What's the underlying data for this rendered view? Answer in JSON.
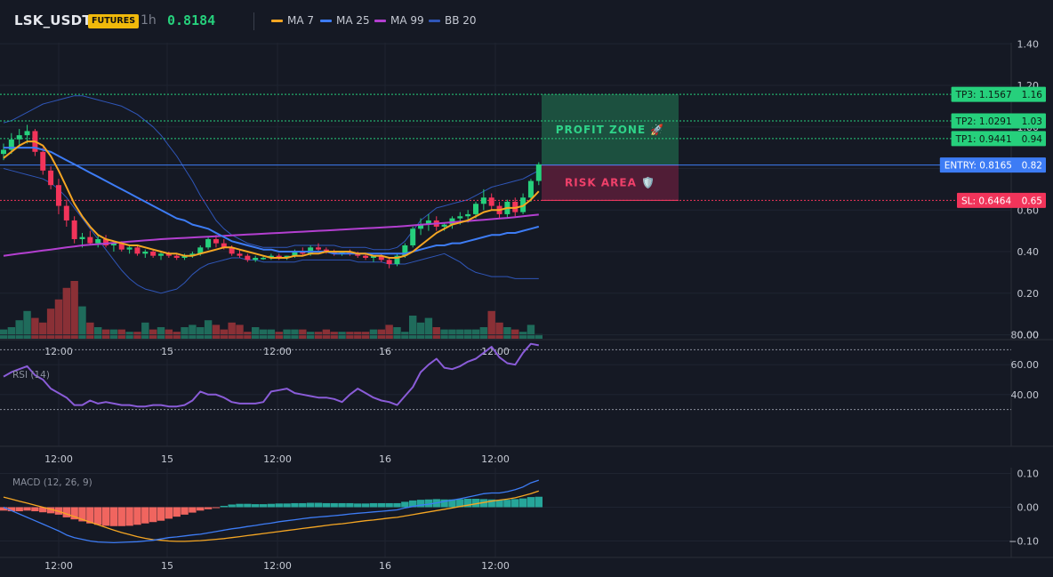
{
  "header": {
    "symbol": "LSK_USDT",
    "badge": "FUTURES",
    "timeframe": "1h",
    "price": "0.8184",
    "indicators": [
      {
        "label": "MA 7",
        "color": "#f5a623"
      },
      {
        "label": "MA 25",
        "color": "#3d7cf5"
      },
      {
        "label": "MA 99",
        "color": "#b33fd0"
      },
      {
        "label": "BB 20",
        "color": "#2f56b8"
      }
    ]
  },
  "colors": {
    "background": "#151924",
    "up": "#26d07c",
    "down": "#f2345a",
    "vol_up": "#1f6b5b",
    "vol_down": "#8a3036",
    "grid": "#1f2431",
    "axis_text": "#c5c9d3",
    "profit_zone": "#1d5a44",
    "risk_zone": "#5a1f3a"
  },
  "chart_data": [
    {
      "type": "candlestick",
      "panel": "price",
      "x_tick_labels": [
        "12:00",
        "15",
        "12:00",
        "16",
        "12:00"
      ],
      "y_ticks": [
        0.0,
        0.2,
        0.4,
        0.6,
        0.8,
        1.0,
        1.2,
        1.4
      ],
      "y_tick_labels": [
        "0.00",
        "0.20",
        "0.40",
        "0.60",
        "0.80",
        "1.00",
        "1.20",
        "1.40"
      ],
      "ylim": [
        0.0,
        1.4
      ],
      "candles": [
        [
          0.87,
          0.92,
          0.84,
          0.89
        ],
        [
          0.89,
          0.97,
          0.87,
          0.94
        ],
        [
          0.94,
          0.99,
          0.9,
          0.96
        ],
        [
          0.96,
          1.01,
          0.92,
          0.98
        ],
        [
          0.98,
          0.99,
          0.86,
          0.88
        ],
        [
          0.88,
          0.9,
          0.77,
          0.79
        ],
        [
          0.79,
          0.81,
          0.7,
          0.72
        ],
        [
          0.72,
          0.75,
          0.58,
          0.62
        ],
        [
          0.62,
          0.65,
          0.52,
          0.55
        ],
        [
          0.55,
          0.57,
          0.44,
          0.46
        ],
        [
          0.46,
          0.49,
          0.42,
          0.47
        ],
        [
          0.47,
          0.5,
          0.43,
          0.44
        ],
        [
          0.44,
          0.48,
          0.42,
          0.46
        ],
        [
          0.46,
          0.48,
          0.42,
          0.43
        ],
        [
          0.43,
          0.45,
          0.4,
          0.44
        ],
        [
          0.44,
          0.45,
          0.4,
          0.41
        ],
        [
          0.41,
          0.43,
          0.39,
          0.42
        ],
        [
          0.42,
          0.43,
          0.38,
          0.39
        ],
        [
          0.39,
          0.41,
          0.37,
          0.4
        ],
        [
          0.4,
          0.41,
          0.37,
          0.38
        ],
        [
          0.38,
          0.4,
          0.36,
          0.39
        ],
        [
          0.39,
          0.4,
          0.37,
          0.38
        ],
        [
          0.38,
          0.39,
          0.36,
          0.37
        ],
        [
          0.37,
          0.39,
          0.36,
          0.38
        ],
        [
          0.38,
          0.4,
          0.37,
          0.39
        ],
        [
          0.39,
          0.43,
          0.38,
          0.42
        ],
        [
          0.42,
          0.47,
          0.41,
          0.46
        ],
        [
          0.46,
          0.48,
          0.42,
          0.44
        ],
        [
          0.44,
          0.46,
          0.41,
          0.42
        ],
        [
          0.42,
          0.43,
          0.38,
          0.39
        ],
        [
          0.39,
          0.41,
          0.37,
          0.38
        ],
        [
          0.38,
          0.39,
          0.35,
          0.36
        ],
        [
          0.36,
          0.38,
          0.35,
          0.37
        ],
        [
          0.37,
          0.38,
          0.36,
          0.37
        ],
        [
          0.37,
          0.39,
          0.36,
          0.38
        ],
        [
          0.38,
          0.39,
          0.36,
          0.37
        ],
        [
          0.37,
          0.38,
          0.36,
          0.38
        ],
        [
          0.38,
          0.41,
          0.37,
          0.4
        ],
        [
          0.4,
          0.42,
          0.38,
          0.39
        ],
        [
          0.39,
          0.43,
          0.38,
          0.42
        ],
        [
          0.42,
          0.44,
          0.4,
          0.41
        ],
        [
          0.41,
          0.42,
          0.39,
          0.4
        ],
        [
          0.4,
          0.41,
          0.38,
          0.39
        ],
        [
          0.39,
          0.4,
          0.38,
          0.4
        ],
        [
          0.4,
          0.41,
          0.38,
          0.39
        ],
        [
          0.39,
          0.4,
          0.37,
          0.38
        ],
        [
          0.38,
          0.39,
          0.36,
          0.37
        ],
        [
          0.37,
          0.38,
          0.35,
          0.38
        ],
        [
          0.38,
          0.39,
          0.35,
          0.36
        ],
        [
          0.36,
          0.37,
          0.32,
          0.34
        ],
        [
          0.34,
          0.39,
          0.33,
          0.38
        ],
        [
          0.38,
          0.44,
          0.37,
          0.43
        ],
        [
          0.43,
          0.52,
          0.42,
          0.51
        ],
        [
          0.51,
          0.56,
          0.48,
          0.53
        ],
        [
          0.53,
          0.58,
          0.5,
          0.55
        ],
        [
          0.55,
          0.57,
          0.5,
          0.52
        ],
        [
          0.52,
          0.54,
          0.5,
          0.53
        ],
        [
          0.53,
          0.57,
          0.51,
          0.56
        ],
        [
          0.56,
          0.59,
          0.53,
          0.57
        ],
        [
          0.57,
          0.6,
          0.54,
          0.58
        ],
        [
          0.58,
          0.64,
          0.56,
          0.63
        ],
        [
          0.63,
          0.7,
          0.6,
          0.66
        ],
        [
          0.66,
          0.68,
          0.6,
          0.62
        ],
        [
          0.62,
          0.64,
          0.56,
          0.58
        ],
        [
          0.58,
          0.65,
          0.56,
          0.64
        ],
        [
          0.64,
          0.66,
          0.57,
          0.59
        ],
        [
          0.59,
          0.68,
          0.58,
          0.66
        ],
        [
          0.66,
          0.75,
          0.64,
          0.74
        ],
        [
          0.74,
          0.83,
          0.72,
          0.82
        ]
      ],
      "ma7": [
        0.85,
        0.88,
        0.91,
        0.93,
        0.93,
        0.91,
        0.86,
        0.79,
        0.71,
        0.63,
        0.57,
        0.52,
        0.48,
        0.46,
        0.45,
        0.44,
        0.43,
        0.43,
        0.42,
        0.41,
        0.4,
        0.39,
        0.39,
        0.38,
        0.38,
        0.39,
        0.4,
        0.41,
        0.42,
        0.42,
        0.41,
        0.4,
        0.39,
        0.38,
        0.37,
        0.37,
        0.37,
        0.38,
        0.38,
        0.39,
        0.39,
        0.4,
        0.4,
        0.4,
        0.4,
        0.39,
        0.39,
        0.38,
        0.38,
        0.37,
        0.37,
        0.38,
        0.4,
        0.43,
        0.46,
        0.49,
        0.51,
        0.53,
        0.54,
        0.55,
        0.57,
        0.59,
        0.6,
        0.6,
        0.61,
        0.61,
        0.62,
        0.65,
        0.69
      ],
      "ma25": [
        0.9,
        0.9,
        0.9,
        0.9,
        0.9,
        0.89,
        0.88,
        0.86,
        0.84,
        0.82,
        0.8,
        0.78,
        0.76,
        0.74,
        0.72,
        0.7,
        0.68,
        0.66,
        0.64,
        0.62,
        0.6,
        0.58,
        0.56,
        0.55,
        0.53,
        0.52,
        0.51,
        0.49,
        0.47,
        0.45,
        0.44,
        0.43,
        0.42,
        0.41,
        0.41,
        0.4,
        0.4,
        0.4,
        0.4,
        0.4,
        0.4,
        0.4,
        0.39,
        0.39,
        0.39,
        0.39,
        0.39,
        0.39,
        0.39,
        0.39,
        0.39,
        0.39,
        0.4,
        0.41,
        0.42,
        0.43,
        0.43,
        0.44,
        0.44,
        0.45,
        0.46,
        0.47,
        0.48,
        0.48,
        0.49,
        0.49,
        0.5,
        0.51,
        0.52
      ],
      "ma99": [
        0.38,
        0.385,
        0.39,
        0.395,
        0.4,
        0.405,
        0.41,
        0.415,
        0.42,
        0.425,
        0.43,
        0.433,
        0.436,
        0.439,
        0.442,
        0.445,
        0.448,
        0.451,
        0.454,
        0.457,
        0.46,
        0.462,
        0.464,
        0.466,
        0.468,
        0.47,
        0.472,
        0.474,
        0.476,
        0.478,
        0.48,
        0.482,
        0.484,
        0.486,
        0.488,
        0.49,
        0.492,
        0.494,
        0.496,
        0.498,
        0.5,
        0.502,
        0.504,
        0.506,
        0.508,
        0.51,
        0.512,
        0.514,
        0.516,
        0.518,
        0.52,
        0.523,
        0.526,
        0.529,
        0.532,
        0.535,
        0.538,
        0.541,
        0.544,
        0.547,
        0.55,
        0.553,
        0.556,
        0.559,
        0.562,
        0.566,
        0.57,
        0.574,
        0.578
      ],
      "bb_upper": [
        1.02,
        1.03,
        1.05,
        1.07,
        1.09,
        1.11,
        1.12,
        1.13,
        1.14,
        1.15,
        1.15,
        1.14,
        1.13,
        1.12,
        1.11,
        1.1,
        1.08,
        1.06,
        1.03,
        1.0,
        0.96,
        0.91,
        0.86,
        0.8,
        0.74,
        0.67,
        0.61,
        0.55,
        0.51,
        0.48,
        0.46,
        0.44,
        0.43,
        0.42,
        0.42,
        0.42,
        0.42,
        0.43,
        0.43,
        0.43,
        0.43,
        0.43,
        0.43,
        0.42,
        0.42,
        0.42,
        0.42,
        0.41,
        0.41,
        0.41,
        0.42,
        0.45,
        0.5,
        0.55,
        0.58,
        0.61,
        0.62,
        0.63,
        0.64,
        0.65,
        0.67,
        0.69,
        0.71,
        0.72,
        0.73,
        0.74,
        0.75,
        0.77,
        0.79
      ],
      "bb_lower": [
        0.8,
        0.79,
        0.78,
        0.77,
        0.76,
        0.75,
        0.73,
        0.7,
        0.66,
        0.61,
        0.56,
        0.51,
        0.46,
        0.41,
        0.36,
        0.31,
        0.27,
        0.24,
        0.22,
        0.21,
        0.2,
        0.21,
        0.22,
        0.25,
        0.29,
        0.32,
        0.34,
        0.35,
        0.36,
        0.37,
        0.37,
        0.36,
        0.36,
        0.35,
        0.35,
        0.35,
        0.35,
        0.35,
        0.36,
        0.36,
        0.36,
        0.36,
        0.36,
        0.36,
        0.36,
        0.35,
        0.35,
        0.35,
        0.35,
        0.34,
        0.34,
        0.34,
        0.35,
        0.36,
        0.37,
        0.38,
        0.39,
        0.37,
        0.35,
        0.32,
        0.3,
        0.29,
        0.28,
        0.28,
        0.28,
        0.27,
        0.27,
        0.27,
        0.27
      ],
      "volume": [
        0.04,
        0.05,
        0.08,
        0.12,
        0.09,
        0.07,
        0.13,
        0.17,
        0.22,
        0.25,
        0.14,
        0.07,
        0.05,
        0.04,
        0.04,
        0.04,
        0.03,
        0.03,
        0.07,
        0.04,
        0.05,
        0.04,
        0.03,
        0.05,
        0.06,
        0.05,
        0.08,
        0.06,
        0.04,
        0.07,
        0.06,
        0.03,
        0.05,
        0.04,
        0.04,
        0.03,
        0.04,
        0.04,
        0.04,
        0.03,
        0.03,
        0.04,
        0.03,
        0.03,
        0.03,
        0.03,
        0.03,
        0.04,
        0.04,
        0.06,
        0.05,
        0.03,
        0.1,
        0.07,
        0.09,
        0.05,
        0.04,
        0.04,
        0.04,
        0.04,
        0.04,
        0.05,
        0.12,
        0.07,
        0.05,
        0.04,
        0.03,
        0.06,
        0.02
      ],
      "levels": [
        {
          "label": "TP3: 1.1567",
          "axis": "1.16",
          "value": 1.1567,
          "kind": "tp"
        },
        {
          "label": "TP2: 1.0291",
          "axis": "1.03",
          "value": 1.0291,
          "kind": "tp"
        },
        {
          "label": "TP1: 0.9441",
          "axis": "0.94",
          "value": 0.9441,
          "kind": "tp"
        },
        {
          "label": "ENTRY: 0.8165",
          "axis": "0.82",
          "value": 0.8165,
          "kind": "entry"
        },
        {
          "label": "SL: 0.6464",
          "axis": "0.65",
          "value": 0.6464,
          "kind": "sl"
        }
      ],
      "zones": [
        {
          "label": "PROFIT ZONE 🚀",
          "from": 0.8165,
          "to": 1.1567,
          "kind": "profit"
        },
        {
          "label": "RISK AREA 🛡️",
          "from": 0.6464,
          "to": 0.8165,
          "kind": "risk"
        }
      ]
    },
    {
      "type": "line",
      "panel": "rsi",
      "label": "RSI (14)",
      "y_ticks": [
        40,
        60,
        80
      ],
      "y_tick_labels": [
        "40.00",
        "60.00",
        "80.00"
      ],
      "ylim": [
        28,
        82
      ],
      "levels": [
        70,
        30
      ],
      "x_tick_labels": [
        "12:00",
        "15",
        "12:00",
        "16",
        "12:00"
      ],
      "values": [
        52,
        55,
        57,
        59,
        53,
        50,
        44,
        41,
        38,
        33,
        33,
        36,
        34,
        35,
        34,
        33,
        33,
        32,
        32,
        33,
        33,
        32,
        32,
        33,
        36,
        42,
        40,
        40,
        38,
        35,
        34,
        34,
        34,
        35,
        42,
        43,
        44,
        41,
        40,
        39,
        38,
        38,
        37,
        35,
        40,
        44,
        41,
        38,
        36,
        35,
        33,
        39,
        45,
        55,
        60,
        64,
        58,
        57,
        59,
        62,
        64,
        68,
        72,
        65,
        61,
        60,
        68,
        74,
        73
      ],
      "values_x_offset": 0
    },
    {
      "type": "bar+line",
      "panel": "macd",
      "label": "MACD (12, 26, 9)",
      "y_ticks": [
        -0.1,
        0.0,
        0.1
      ],
      "y_tick_labels": [
        "−0.10",
        "0.00",
        "0.10"
      ],
      "ylim": [
        -0.125,
        0.105
      ],
      "x_tick_labels": [
        "12:00",
        "15",
        "12:00",
        "16",
        "12:00"
      ],
      "histogram": [
        -0.01,
        -0.012,
        -0.012,
        -0.01,
        -0.012,
        -0.015,
        -0.018,
        -0.022,
        -0.03,
        -0.036,
        -0.042,
        -0.048,
        -0.052,
        -0.055,
        -0.056,
        -0.056,
        -0.055,
        -0.052,
        -0.048,
        -0.044,
        -0.04,
        -0.034,
        -0.028,
        -0.022,
        -0.016,
        -0.01,
        -0.006,
        -0.002,
        0.004,
        0.008,
        0.01,
        0.01,
        0.009,
        0.009,
        0.01,
        0.011,
        0.011,
        0.012,
        0.012,
        0.013,
        0.013,
        0.012,
        0.012,
        0.012,
        0.012,
        0.011,
        0.011,
        0.012,
        0.012,
        0.012,
        0.012,
        0.016,
        0.02,
        0.022,
        0.023,
        0.024,
        0.023,
        0.023,
        0.024,
        0.025,
        0.025,
        0.024,
        0.023,
        0.022,
        0.022,
        0.024,
        0.026,
        0.03,
        0.031
      ],
      "macd": [
        0.0,
        -0.01,
        -0.02,
        -0.03,
        -0.04,
        -0.05,
        -0.06,
        -0.07,
        -0.082,
        -0.09,
        -0.095,
        -0.1,
        -0.103,
        -0.104,
        -0.105,
        -0.104,
        -0.103,
        -0.102,
        -0.1,
        -0.098,
        -0.094,
        -0.09,
        -0.088,
        -0.085,
        -0.082,
        -0.08,
        -0.076,
        -0.072,
        -0.068,
        -0.064,
        -0.061,
        -0.057,
        -0.054,
        -0.05,
        -0.047,
        -0.043,
        -0.04,
        -0.037,
        -0.034,
        -0.031,
        -0.029,
        -0.027,
        -0.025,
        -0.023,
        -0.02,
        -0.018,
        -0.016,
        -0.014,
        -0.012,
        -0.01,
        -0.008,
        -0.002,
        0.002,
        0.006,
        0.009,
        0.013,
        0.017,
        0.021,
        0.025,
        0.03,
        0.035,
        0.04,
        0.042,
        0.042,
        0.046,
        0.052,
        0.06,
        0.072,
        0.08
      ],
      "signal": [
        0.03,
        0.024,
        0.018,
        0.012,
        0.006,
        0.0,
        -0.006,
        -0.012,
        -0.02,
        -0.028,
        -0.036,
        -0.044,
        -0.052,
        -0.06,
        -0.068,
        -0.075,
        -0.081,
        -0.087,
        -0.092,
        -0.096,
        -0.098,
        -0.1,
        -0.101,
        -0.101,
        -0.1,
        -0.099,
        -0.097,
        -0.095,
        -0.093,
        -0.09,
        -0.087,
        -0.084,
        -0.081,
        -0.078,
        -0.075,
        -0.072,
        -0.069,
        -0.066,
        -0.063,
        -0.06,
        -0.057,
        -0.054,
        -0.051,
        -0.049,
        -0.046,
        -0.043,
        -0.04,
        -0.038,
        -0.035,
        -0.032,
        -0.03,
        -0.026,
        -0.022,
        -0.018,
        -0.014,
        -0.01,
        -0.006,
        -0.002,
        0.002,
        0.006,
        0.01,
        0.014,
        0.018,
        0.021,
        0.024,
        0.028,
        0.034,
        0.04,
        0.048
      ]
    }
  ]
}
